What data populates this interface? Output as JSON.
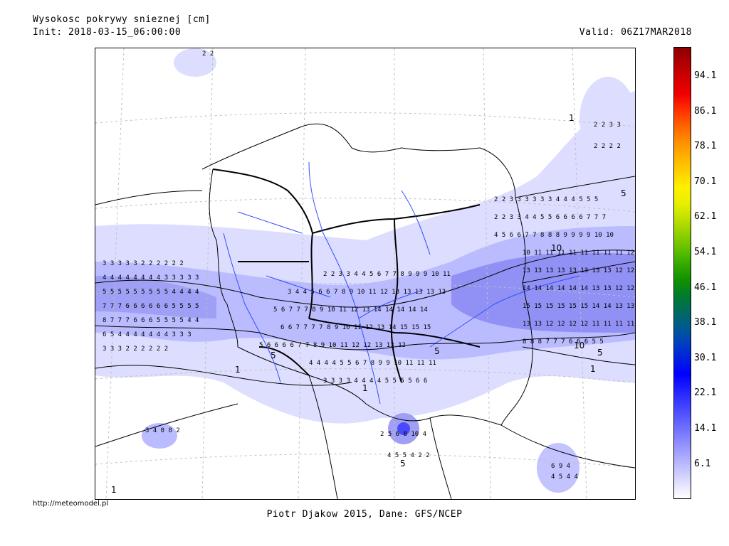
{
  "header": {
    "title": "Wysokosc pokrywy snieznej [cm]",
    "init": "Init: 2018-03-15_06:00:00",
    "valid": "Valid: 06Z17MAR2018"
  },
  "footer": {
    "credit": "Piotr Djakow 2015, Dane: GFS/NCEP",
    "url": "http://meteomodel.pl"
  },
  "legend": {
    "labels": [
      "94.1",
      "86.1",
      "78.1",
      "70.1",
      "62.1",
      "54.1",
      "46.1",
      "38.1",
      "30.1",
      "22.1",
      "14.1",
      "6.1"
    ],
    "colors": [
      "#8b0000",
      "#b00000",
      "#d40000",
      "#f00000",
      "#ff3000",
      "#ff6000",
      "#ff8c00",
      "#ffb000",
      "#ffd000",
      "#fff000",
      "#e8f000",
      "#c0e000",
      "#90d000",
      "#60c000",
      "#30a800",
      "#109000",
      "#007a30",
      "#006a60",
      "#005a90",
      "#0040c0",
      "#0020e0",
      "#0000ff",
      "#2020ff",
      "#4040ff",
      "#6060ff",
      "#8080ff",
      "#a0a0ff",
      "#c0c0ff",
      "#e0e0ff",
      "#ffffff"
    ]
  },
  "map_labels": {
    "contour_1": "1",
    "contour_5": "5",
    "contour_10": "10"
  }
}
